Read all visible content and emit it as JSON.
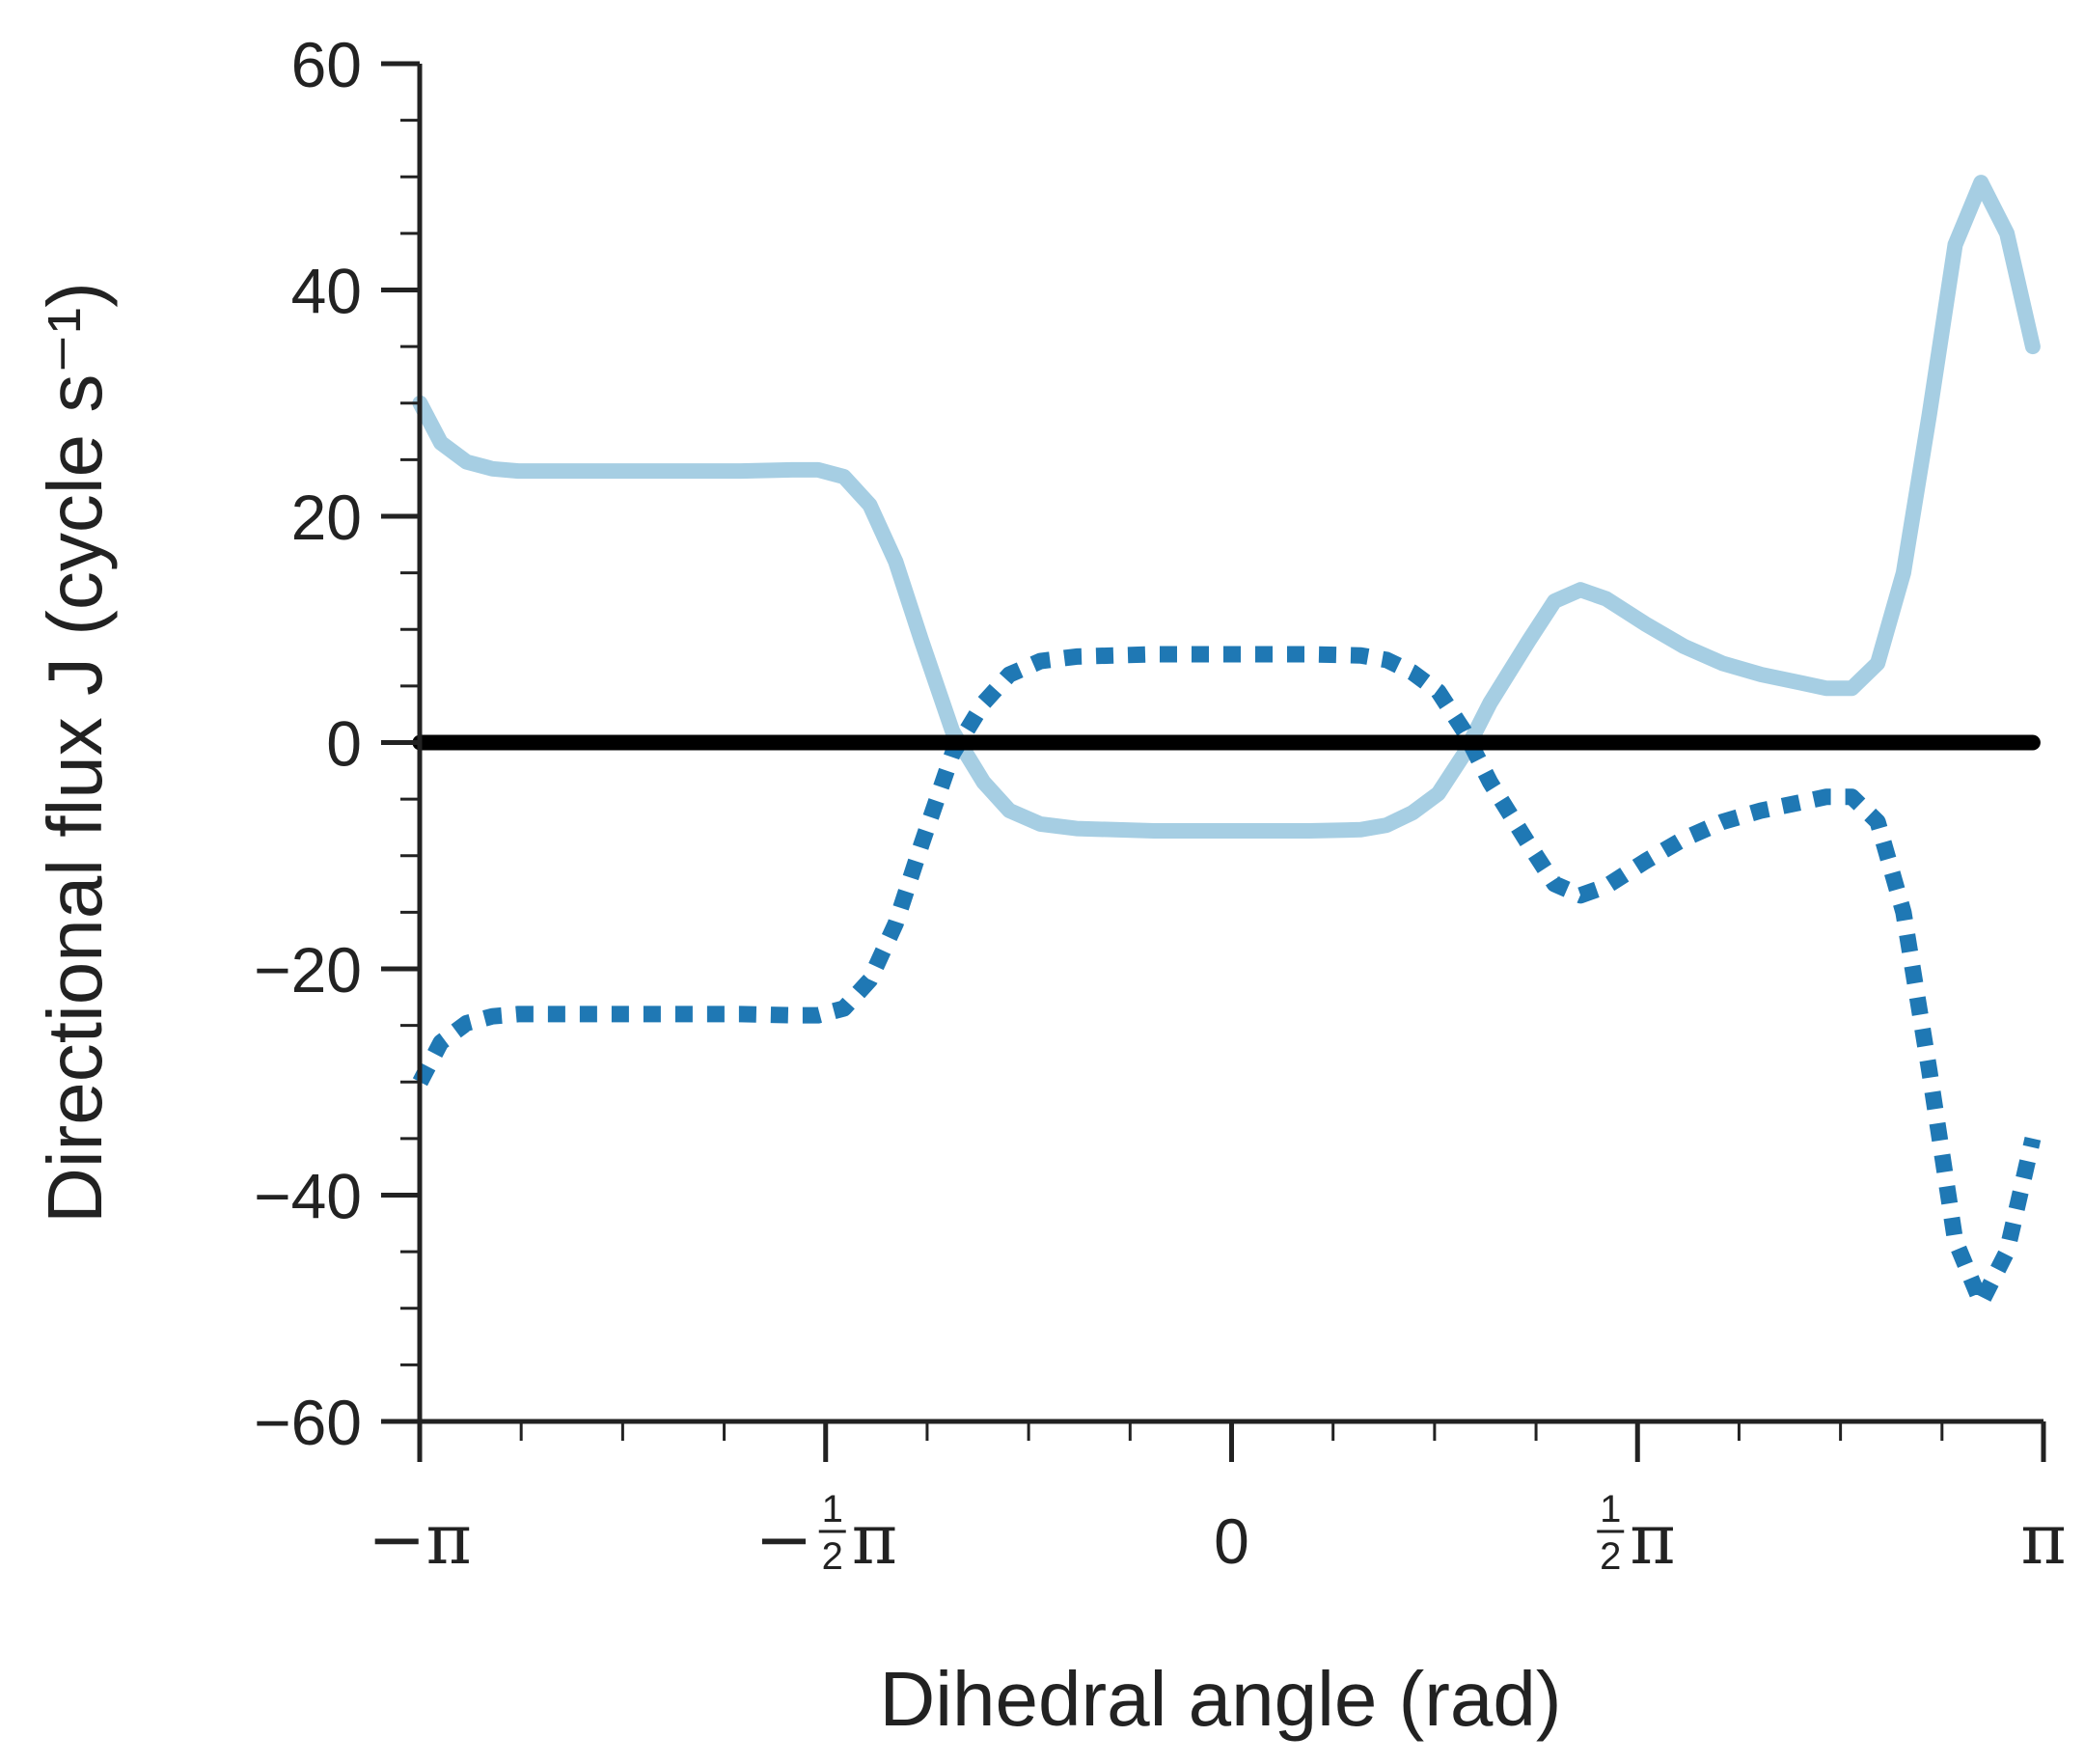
{
  "chart_data": {
    "type": "line",
    "xlabel": "Dihedral angle (rad)",
    "ylabel": "Directional flux J (cycle s⁻¹)",
    "xlim": [
      -3.14159,
      3.14159
    ],
    "ylim": [
      -60,
      60
    ],
    "x_ticks": [
      {
        "value": -3.14159,
        "label": "−π"
      },
      {
        "value": -1.5708,
        "label": "−½π"
      },
      {
        "value": 0,
        "label": "0"
      },
      {
        "value": 1.5708,
        "label": "½π"
      },
      {
        "value": 3.14159,
        "label": "π"
      }
    ],
    "y_ticks": [
      {
        "value": 60,
        "label": "60"
      },
      {
        "value": 40,
        "label": "40"
      },
      {
        "value": 20,
        "label": "20"
      },
      {
        "value": 0,
        "label": "0"
      },
      {
        "value": -20,
        "label": "−20"
      },
      {
        "value": -40,
        "label": "−40"
      },
      {
        "value": -60,
        "label": "−60"
      }
    ],
    "grid": false,
    "series": [
      {
        "style": "solid",
        "color": "#a6cee3",
        "points": [
          [
            -3.14,
            30
          ],
          [
            -3.06,
            26.5
          ],
          [
            -2.96,
            24.8
          ],
          [
            -2.86,
            24.2
          ],
          [
            -2.76,
            24.0
          ],
          [
            -2.5,
            24.0
          ],
          [
            -2.2,
            24.0
          ],
          [
            -1.9,
            24.0
          ],
          [
            -1.7,
            24.1
          ],
          [
            -1.6,
            24.1
          ],
          [
            -1.5,
            23.5
          ],
          [
            -1.4,
            21
          ],
          [
            -1.3,
            16
          ],
          [
            -1.2,
            9
          ],
          [
            -1.08,
            1
          ],
          [
            -0.96,
            -3.5
          ],
          [
            -0.86,
            -6.0
          ],
          [
            -0.74,
            -7.2
          ],
          [
            -0.6,
            -7.6
          ],
          [
            -0.3,
            -7.8
          ],
          [
            0,
            -7.8
          ],
          [
            0.3,
            -7.8
          ],
          [
            0.5,
            -7.7
          ],
          [
            0.6,
            -7.3
          ],
          [
            0.7,
            -6.2
          ],
          [
            0.8,
            -4.5
          ],
          [
            0.9,
            -1.0
          ],
          [
            1.0,
            3.5
          ],
          [
            1.15,
            9.0
          ],
          [
            1.25,
            12.5
          ],
          [
            1.35,
            13.5
          ],
          [
            1.45,
            12.7
          ],
          [
            1.6,
            10.5
          ],
          [
            1.75,
            8.5
          ],
          [
            1.9,
            7.0
          ],
          [
            2.05,
            6.0
          ],
          [
            2.2,
            5.3
          ],
          [
            2.3,
            4.8
          ],
          [
            2.4,
            4.8
          ],
          [
            2.5,
            7.0
          ],
          [
            2.6,
            15
          ],
          [
            2.7,
            29
          ],
          [
            2.8,
            44
          ],
          [
            2.9,
            49.5
          ],
          [
            3.0,
            45
          ],
          [
            3.1,
            35
          ]
        ]
      },
      {
        "style": "dotted",
        "color": "#1f78b4",
        "points": [
          [
            -3.14,
            -30
          ],
          [
            -3.06,
            -26.5
          ],
          [
            -2.96,
            -24.8
          ],
          [
            -2.86,
            -24.2
          ],
          [
            -2.76,
            -24.0
          ],
          [
            -2.5,
            -24.0
          ],
          [
            -2.2,
            -24.0
          ],
          [
            -1.9,
            -24.0
          ],
          [
            -1.7,
            -24.1
          ],
          [
            -1.6,
            -24.1
          ],
          [
            -1.5,
            -23.5
          ],
          [
            -1.4,
            -21
          ],
          [
            -1.3,
            -16
          ],
          [
            -1.2,
            -9
          ],
          [
            -1.08,
            -1
          ],
          [
            -0.96,
            3.5
          ],
          [
            -0.86,
            6.0
          ],
          [
            -0.74,
            7.2
          ],
          [
            -0.6,
            7.6
          ],
          [
            -0.3,
            7.8
          ],
          [
            0,
            7.8
          ],
          [
            0.3,
            7.8
          ],
          [
            0.5,
            7.7
          ],
          [
            0.6,
            7.3
          ],
          [
            0.7,
            6.2
          ],
          [
            0.8,
            4.5
          ],
          [
            0.9,
            1.0
          ],
          [
            1.0,
            -3.5
          ],
          [
            1.15,
            -9.0
          ],
          [
            1.25,
            -12.5
          ],
          [
            1.35,
            -13.5
          ],
          [
            1.45,
            -12.7
          ],
          [
            1.6,
            -10.5
          ],
          [
            1.75,
            -8.5
          ],
          [
            1.9,
            -7.0
          ],
          [
            2.05,
            -6.0
          ],
          [
            2.2,
            -5.3
          ],
          [
            2.3,
            -4.8
          ],
          [
            2.4,
            -4.8
          ],
          [
            2.5,
            -7.0
          ],
          [
            2.6,
            -15
          ],
          [
            2.7,
            -29
          ],
          [
            2.8,
            -44
          ],
          [
            2.9,
            -49.5
          ],
          [
            3.0,
            -45
          ],
          [
            3.1,
            -35
          ]
        ]
      },
      {
        "style": "solid",
        "color": "#000000",
        "points": [
          [
            -3.14,
            0
          ],
          [
            3.1,
            0
          ]
        ]
      }
    ]
  }
}
